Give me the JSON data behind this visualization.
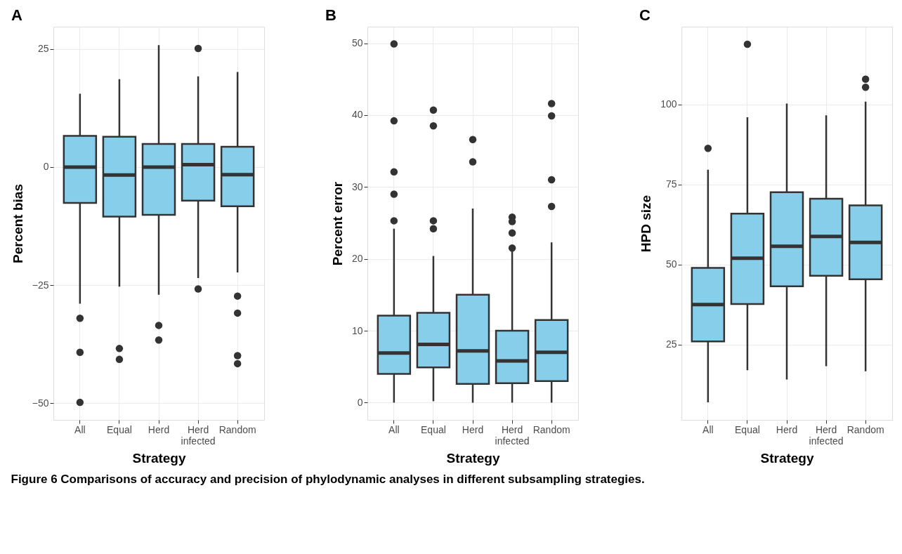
{
  "chart_data": [
    {
      "type": "box",
      "title": "A",
      "xlabel": "Strategy",
      "ylabel": "Percent bias",
      "categories": [
        "All",
        "Equal",
        "Herd",
        "Herd\ninfected",
        "Random"
      ],
      "ylim": [
        -53.5,
        29.7
      ],
      "yticks": [
        -50,
        -25,
        0,
        25
      ],
      "grid": true,
      "color": "#87ceeb",
      "boxes": [
        {
          "low": -28.9,
          "q1": -7.6,
          "median": 0,
          "q3": 6.6,
          "high": 15.5,
          "outliers": [
            -32.0,
            -39.2,
            -49.8
          ]
        },
        {
          "low": -25.3,
          "q1": -10.5,
          "median": -1.7,
          "q3": 6.4,
          "high": 18.6,
          "outliers": [
            -38.4,
            -40.7
          ]
        },
        {
          "low": -27.0,
          "q1": -10.1,
          "median": 0,
          "q3": 4.9,
          "high": 25.8,
          "outliers": [
            -33.5,
            -36.6
          ]
        },
        {
          "low": -23.5,
          "q1": -7.1,
          "median": 0.5,
          "q3": 4.9,
          "high": 19.2,
          "outliers": [
            25.1,
            -25.8
          ]
        },
        {
          "low": -22.3,
          "q1": -8.3,
          "median": -1.6,
          "q3": 4.3,
          "high": 20.1,
          "outliers": [
            -27.3,
            -30.9,
            -39.9,
            -41.6
          ]
        }
      ],
      "annotations": [
        "Figure 6  Comparisons of accuracy and precision of phylodynamic analyses in different subsampling strategies."
      ]
    },
    {
      "type": "box",
      "title": "B",
      "xlabel": "Strategy",
      "ylabel": "Percent error",
      "categories": [
        "All",
        "Equal",
        "Herd",
        "Herd\ninfected",
        "Random"
      ],
      "ylim": [
        -2.4,
        52.3
      ],
      "yticks": [
        0,
        10,
        20,
        30,
        40,
        50
      ],
      "grid": true,
      "color": "#87ceeb",
      "boxes": [
        {
          "low": 0,
          "q1": 4.0,
          "median": 6.9,
          "q3": 12.1,
          "high": 24.2,
          "outliers": [
            49.9,
            39.2,
            32.1,
            29.0,
            25.3
          ]
        },
        {
          "low": 0.2,
          "q1": 4.9,
          "median": 8.1,
          "q3": 12.5,
          "high": 20.4,
          "outliers": [
            40.7,
            38.5,
            25.3,
            24.2
          ]
        },
        {
          "low": 0,
          "q1": 2.6,
          "median": 7.2,
          "q3": 15.0,
          "high": 27.0,
          "outliers": [
            36.6,
            33.5
          ]
        },
        {
          "low": 0,
          "q1": 2.7,
          "median": 5.8,
          "q3": 10.0,
          "high": 21.1,
          "outliers": [
            25.8,
            25.2,
            23.6,
            21.5
          ]
        },
        {
          "low": 0,
          "q1": 3.0,
          "median": 7.0,
          "q3": 11.5,
          "high": 22.3,
          "outliers": [
            41.6,
            39.9,
            31.0,
            27.3
          ]
        }
      ]
    },
    {
      "type": "box",
      "title": "C",
      "xlabel": "Strategy",
      "ylabel": "HPD size",
      "categories": [
        "All",
        "Equal",
        "Herd",
        "Herd\ninfected",
        "Random"
      ],
      "ylim": [
        1.5,
        124.3
      ],
      "yticks": [
        25,
        50,
        75,
        100
      ],
      "grid": true,
      "color": "#87ceeb",
      "boxes": [
        {
          "low": 7.0,
          "q1": 26.0,
          "median": 37.5,
          "q3": 49.0,
          "high": 79.6,
          "outliers": [
            86.3
          ]
        },
        {
          "low": 17.0,
          "q1": 37.7,
          "median": 52.0,
          "q3": 65.9,
          "high": 96.0,
          "outliers": [
            118.8
          ]
        },
        {
          "low": 14.1,
          "q1": 43.2,
          "median": 55.7,
          "q3": 72.6,
          "high": 100.3
        },
        {
          "low": 18.3,
          "q1": 46.5,
          "median": 58.8,
          "q3": 70.6,
          "high": 96.6
        },
        {
          "low": 16.7,
          "q1": 45.4,
          "median": 56.9,
          "q3": 68.5,
          "high": 100.9,
          "outliers": [
            107.9,
            105.4
          ]
        }
      ]
    }
  ]
}
